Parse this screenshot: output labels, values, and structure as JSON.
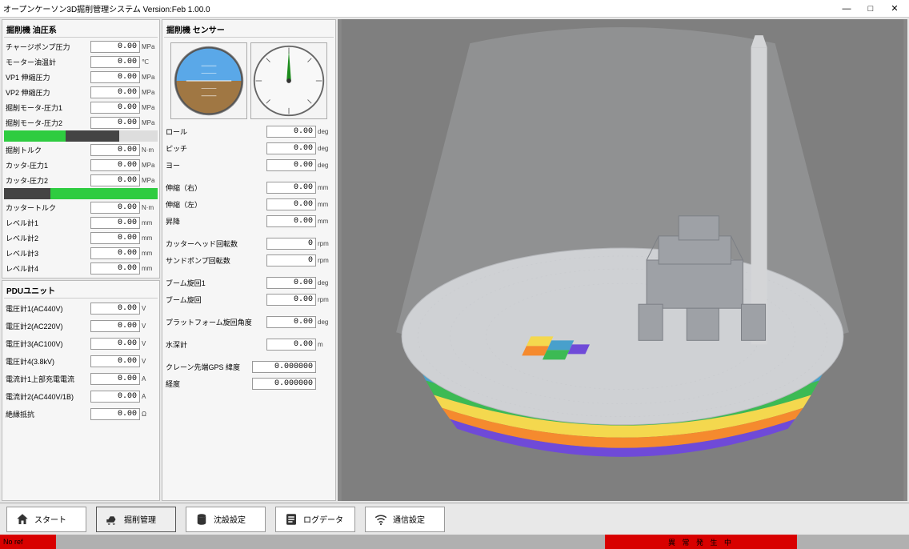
{
  "window": {
    "title": "オープンケーソン3D掘削管理システム  Version:Feb 1.00.0"
  },
  "panel_oil": {
    "title": "掘削機 油圧系",
    "rows": [
      {
        "label": "チャージポンプ圧力",
        "value": "0.00",
        "unit": "MPa"
      },
      {
        "label": "モーター油温計",
        "value": "0.00",
        "unit": "℃"
      },
      {
        "label": "VP1 伸縮圧力",
        "value": "0.00",
        "unit": "MPa"
      },
      {
        "label": "VP2 伸縮圧力",
        "value": "0.00",
        "unit": "MPa"
      },
      {
        "label": "掘削モータ-圧力1",
        "value": "0.00",
        "unit": "MPa"
      },
      {
        "label": "掘削モータ-圧力2",
        "value": "0.00",
        "unit": "MPa"
      }
    ],
    "bar1_colors": [
      "#2ecc40",
      "#444444",
      "#dddddd"
    ],
    "rows2": [
      {
        "label": "掘削トルク",
        "value": "0.00",
        "unit": "N·m"
      },
      {
        "label": "カッタ-圧力1",
        "value": "0.00",
        "unit": "MPa"
      },
      {
        "label": "カッタ-圧力2",
        "value": "0.00",
        "unit": "MPa"
      }
    ],
    "bar2_colors": [
      "#444444",
      "#2ecc40",
      "#2ecc40"
    ],
    "rows3": [
      {
        "label": "カッタートルク",
        "value": "0.00",
        "unit": "N·m"
      },
      {
        "label": "レベル計1",
        "value": "0.00",
        "unit": "mm"
      },
      {
        "label": "レベル計2",
        "value": "0.00",
        "unit": "mm"
      },
      {
        "label": "レベル計3",
        "value": "0.00",
        "unit": "mm"
      },
      {
        "label": "レベル計4",
        "value": "0.00",
        "unit": "mm"
      }
    ]
  },
  "panel_pdu": {
    "title": "PDUユニット",
    "rows": [
      {
        "label": "電圧計1(AC440V)",
        "value": "0.00",
        "unit": "V"
      },
      {
        "label": "電圧計2(AC220V)",
        "value": "0.00",
        "unit": "V"
      },
      {
        "label": "電圧計3(AC100V)",
        "value": "0.00",
        "unit": "V"
      },
      {
        "label": "電圧計4(3.8kV)",
        "value": "0.00",
        "unit": "V"
      },
      {
        "label": "電流計1上部充電電流",
        "value": "0.00",
        "unit": "A"
      },
      {
        "label": "電流計2(AC440V/1B)",
        "value": "0.00",
        "unit": "A"
      },
      {
        "label": "絶縁抵抗",
        "value": "0.00",
        "unit": "Ω"
      }
    ]
  },
  "panel_sensor": {
    "title": "掘削機 センサー",
    "attitude": {
      "sky": "#5aa8e8",
      "ground": "#a07743",
      "ring": "#888888"
    },
    "compass": {
      "face": "#f8f8f8",
      "ring": "#666666",
      "needle": "#1c8c1c"
    },
    "rows": [
      {
        "label": "ロール",
        "value": "0.00",
        "unit": "deg"
      },
      {
        "label": "ピッチ",
        "value": "0.00",
        "unit": "deg"
      },
      {
        "label": "ヨー",
        "value": "0.00",
        "unit": "deg"
      },
      {
        "label": "伸縮（右）",
        "value": "0.00",
        "unit": "mm"
      },
      {
        "label": "伸縮（左）",
        "value": "0.00",
        "unit": "mm"
      },
      {
        "label": "昇降",
        "value": "0.00",
        "unit": "mm"
      },
      {
        "label": "カッターヘッド回転数",
        "value": "0",
        "unit": "rpm"
      },
      {
        "label": "サンドポンプ回転数",
        "value": "0",
        "unit": "rpm"
      },
      {
        "label": "ブーム旋回1",
        "value": "0.00",
        "unit": "deg"
      },
      {
        "label": "ブーム旋回",
        "value": "0.00",
        "unit": "rpm"
      },
      {
        "label": "プラットフォーム旋回角度",
        "value": "0.00",
        "unit": "deg"
      },
      {
        "label": "水深計",
        "value": "0.00",
        "unit": "m"
      },
      {
        "label": "クレーン先端GPS 緯度",
        "value": "0.000000",
        "unit": ""
      },
      {
        "label": "経度",
        "value": "0.000000",
        "unit": ""
      }
    ]
  },
  "viewport": {
    "bg": "#7f7f7f",
    "cone": "#a8a9aa",
    "disc": "#cfd1d4",
    "pillar": "#d4d5d7",
    "machine": "#9ea1a6",
    "colors": [
      "#48a0cc",
      "#f4d84e",
      "#f58a2e",
      "#3cba54",
      "#6f4ad8",
      "#d84848"
    ]
  },
  "nav": {
    "items": [
      {
        "icon": "home-icon",
        "label": "スタート"
      },
      {
        "icon": "excavator-icon",
        "label": "掘削管理"
      },
      {
        "icon": "cylinder-icon",
        "label": "沈設設定"
      },
      {
        "icon": "log-icon",
        "label": "ログデータ"
      },
      {
        "icon": "wifi-icon",
        "label": "通信設定"
      }
    ],
    "active_index": 1
  },
  "status": {
    "left_text": "No ref",
    "mid_text": "異 常 発 生 中",
    "red": "#d80000",
    "grey": "#b0b0b0"
  }
}
